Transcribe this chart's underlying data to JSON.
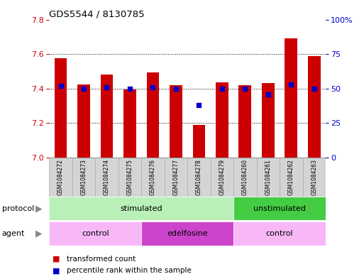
{
  "title": "GDS5544 / 8130785",
  "samples": [
    "GSM1084272",
    "GSM1084273",
    "GSM1084274",
    "GSM1084275",
    "GSM1084276",
    "GSM1084277",
    "GSM1084278",
    "GSM1084279",
    "GSM1084260",
    "GSM1084261",
    "GSM1084262",
    "GSM1084263"
  ],
  "bar_values": [
    7.575,
    7.425,
    7.48,
    7.395,
    7.495,
    7.42,
    7.19,
    7.435,
    7.42,
    7.43,
    7.69,
    7.59
  ],
  "percentile_values": [
    52,
    50,
    51,
    50,
    51,
    50,
    38,
    50,
    50,
    46,
    53,
    50
  ],
  "ymin": 7.0,
  "ymax": 7.8,
  "yticks": [
    7.0,
    7.2,
    7.4,
    7.6,
    7.8
  ],
  "y2min": 0,
  "y2max": 100,
  "y2ticks": [
    0,
    25,
    50,
    75,
    100
  ],
  "bar_color": "#cc0000",
  "dot_color": "#0000cc",
  "protocol_stimulated_color": "#b8f0b8",
  "protocol_unstimulated_color": "#44cc44",
  "agent_control_color": "#f8b8f8",
  "agent_edelfosine_color": "#cc44cc",
  "label_color_red": "#cc0000",
  "label_color_blue": "#0000cc",
  "sample_box_color": "#d4d4d4",
  "sample_box_edge": "#aaaaaa"
}
